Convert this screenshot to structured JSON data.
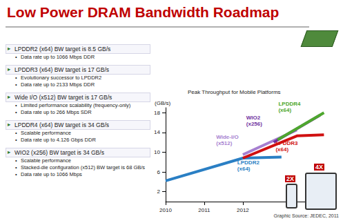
{
  "title": "Low Power DRAM Bandwidth Roadmap",
  "bullets": [
    {
      "heading": "LPDDR2 (x64) BW target is 8.5 GB/s",
      "points": [
        "Data rate up to 1066 Mbps DDR"
      ]
    },
    {
      "heading": "LPDDR3 (x64) BW target is 17 GB/s",
      "points": [
        "Evolutionary successor to LPDDR2",
        "Data rate up to 2133 Mbps DDR"
      ]
    },
    {
      "heading": "Wide I/O (x512) BW target is 17 GB/s",
      "points": [
        "Limited performance scalability (frequency-only)",
        "Data rate up to 266 Mbps SDR"
      ]
    },
    {
      "heading": "LPDDR4 (x64) BW target is 34 GB/s",
      "points": [
        "Scalable performance",
        "Data rate up to 4.126 Gbps DDR"
      ]
    },
    {
      "heading": "WIO2 (x256) BW target is 34 GB/s",
      "points": [
        "Scalable performance",
        "Stacked-die configuration (x512) BW target is 68 GB/s",
        "Data rate up to 1066 Mbps"
      ]
    }
  ],
  "device_labels": [
    "2X",
    "4X"
  ],
  "graphic_source": "Graphic Source: JEDEC, 2011",
  "chart_data": {
    "type": "line",
    "title": "Peak Throughput for Mobile Platforms",
    "y_label": "(GB/s)",
    "xlim": [
      2010,
      2014.2
    ],
    "xticks": [
      2010,
      2011,
      2012
    ],
    "ylim": [
      0,
      19
    ],
    "yticks": [
      2,
      6,
      10,
      14,
      18
    ],
    "grid": false,
    "series": [
      {
        "name": "LPDDR2 (x64)",
        "color": "#2a7fc4",
        "x": [
          2010,
          2012,
          2013
        ],
        "values": [
          4.2,
          8.8,
          9
        ]
      },
      {
        "name": "LPDDR3 (x64)",
        "color": "#d01010",
        "x": [
          2012,
          2013.4,
          2014.1
        ],
        "values": [
          8.8,
          13.3,
          13.5
        ]
      },
      {
        "name": "Wide-I/O (x512)",
        "color": "#a67fd0",
        "x": [
          2012,
          2013.4
        ],
        "values": [
          9.5,
          14.5
        ]
      },
      {
        "name": "WIO2 (x256)",
        "color": "#7030a0",
        "x": [
          2012.8,
          2014
        ],
        "values": [
          12,
          17.5
        ]
      },
      {
        "name": "LPDDR4 (x64)",
        "color": "#4ea72e",
        "x": [
          2012.9,
          2014.1
        ],
        "values": [
          12.5,
          18
        ]
      }
    ]
  }
}
